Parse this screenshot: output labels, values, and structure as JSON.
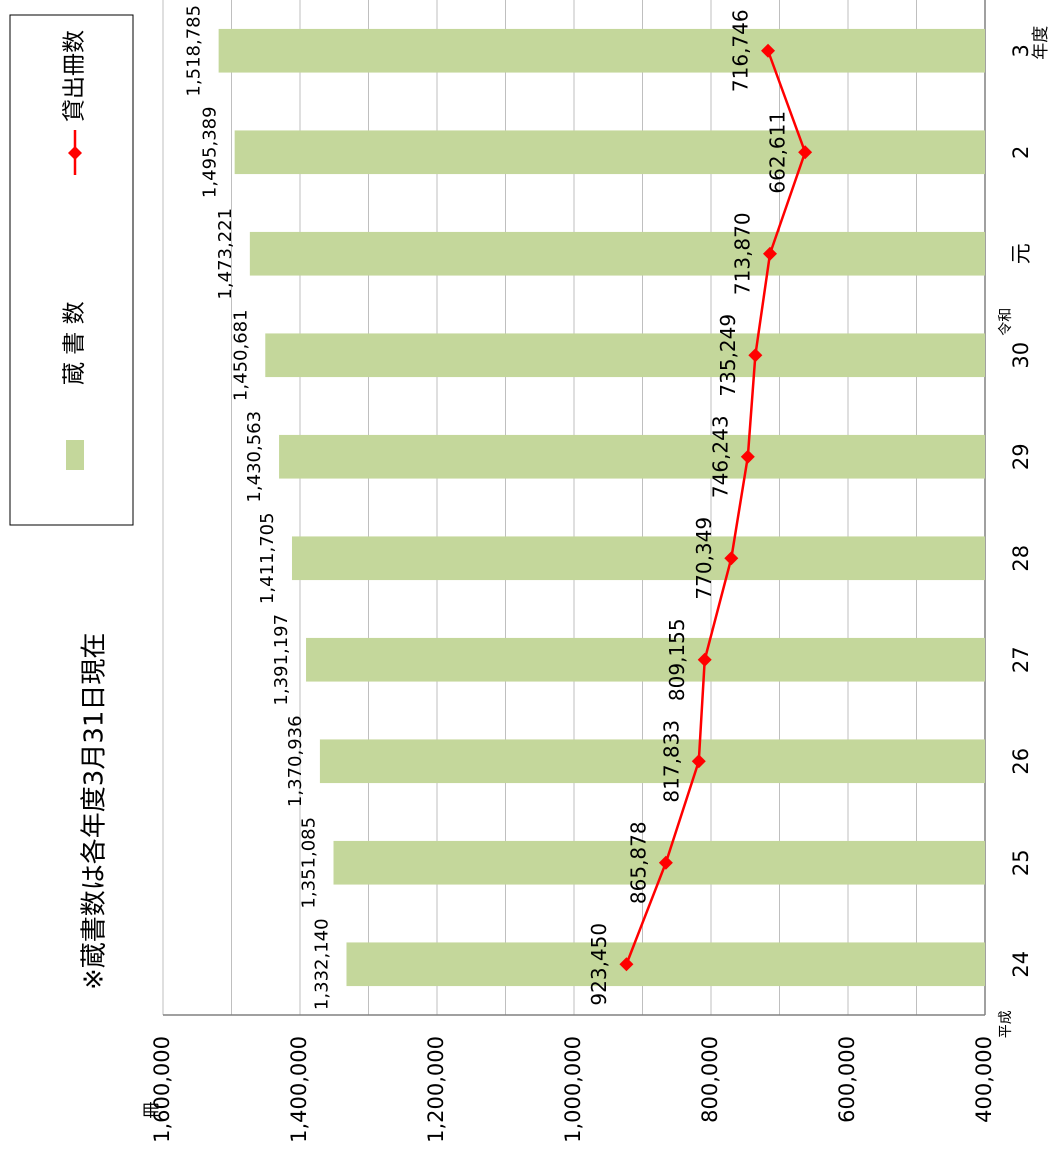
{
  "chart_data": {
    "type": "combo",
    "note": "※蔵書数は各年度3月31日現在",
    "y_unit": "冊",
    "categories": [
      "24",
      "25",
      "26",
      "27",
      "28",
      "29",
      "30",
      "元",
      "2",
      "3"
    ],
    "annotations": [
      "平成",
      "令和",
      "年度"
    ],
    "series": [
      {
        "name": "蔵 書 数",
        "type": "bar",
        "color": "#c4d79b",
        "values": [
          1332140,
          1351085,
          1370936,
          1391197,
          1411705,
          1430563,
          1450681,
          1473221,
          1495389,
          1518785
        ],
        "value_labels": [
          "1,332,140",
          "1,351,085",
          "1,370,936",
          "1,391,197",
          "1,411,705",
          "1,430,563",
          "1,450,681",
          "1,473,221",
          "1,495,389",
          "1,518,785"
        ]
      },
      {
        "name": "貸出冊数",
        "type": "line",
        "color": "#ff0000",
        "values": [
          923450,
          865878,
          817833,
          809155,
          770349,
          746243,
          735249,
          713870,
          662611,
          716746
        ],
        "value_labels": [
          "923,450",
          "865,878",
          "817,833",
          "809,155",
          "770,349",
          "746,243",
          "735,249",
          "713,870",
          "662,611",
          "716,746"
        ]
      }
    ],
    "ylim": [
      400000,
      1600000
    ],
    "yticks": [
      {
        "value": 400000,
        "label": "400,000"
      },
      {
        "value": 600000,
        "label": "600,000"
      },
      {
        "value": 800000,
        "label": "800,000"
      },
      {
        "value": 1000000,
        "label": "1,000,000"
      },
      {
        "value": 1200000,
        "label": "1,200,000"
      },
      {
        "value": 1400000,
        "label": "1,400,000"
      },
      {
        "value": 1600000,
        "label": "1,600,000"
      }
    ],
    "minor_yticks": [
      500000,
      700000,
      900000,
      1100000,
      1300000,
      1500000
    ],
    "grid": true,
    "rotation": -90
  }
}
